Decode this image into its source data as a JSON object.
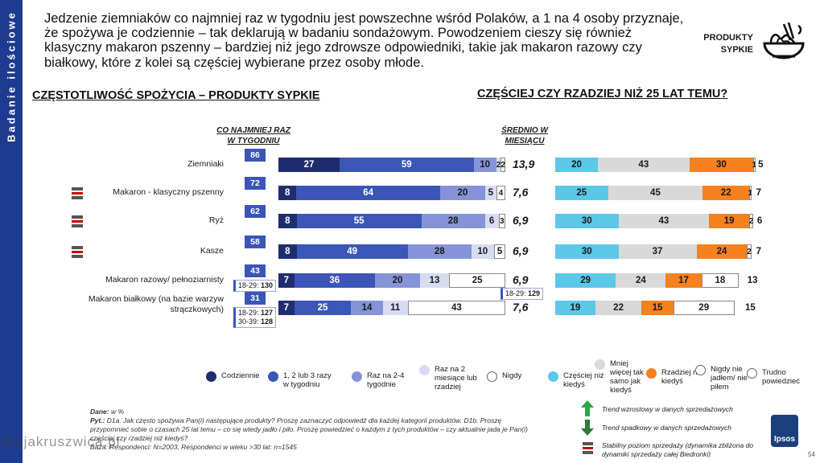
{
  "sidebar": {
    "label": "Badanie ilościowe"
  },
  "headline": "Jedzenie ziemniaków co najmniej raz w tygodniu jest powszechne wśród Polaków, a 1 na 4 osoby przyznaje, że spożywa je codziennie – tak deklarują w badaniu sondażowym. Powodzeniem cieszy się również klasyczny makaron pszenny – bardziej niż jego zdrowsze odpowiedniki, takie jak makaron razowy czy białkowy, które z kolei są częściej wybierane przez osoby młode.",
  "category": {
    "line1": "PRODUKTY",
    "line2": "SYPKIE",
    "icon": "pasta-bowl-icon"
  },
  "section_left": {
    "plain": "CZĘSTOTLIWOŚĆ ",
    "bold": "SPOŻYCIA – PRODUKTY SYPKIE"
  },
  "section_right": {
    "title": "CZĘŚCIEJ CZY RZADZIEJ NIŻ 25 LAT TEMU?"
  },
  "col_weekly": {
    "line1": "CO NAJMNIEJ RAZ",
    "line2": "W TYGODNIU"
  },
  "col_avg": {
    "line1": "ŚREDNIO W",
    "line2": "MIESIĄCU"
  },
  "colors": {
    "daily": "#1f2d6e",
    "weekly13": "#3b56b8",
    "weekly24": "#8594d8",
    "monthly2": "#d8dcf2",
    "never": "#ffffff",
    "more": "#5bc8e8",
    "same": "#d9d9d9",
    "less": "#f5811f",
    "never_r": "#ffffff",
    "dk": "#ffffff",
    "trend_up": "#27a844",
    "trend_down": "#2d7a3a",
    "trend_stable": "#555555"
  },
  "chart_data": [
    {
      "type": "bar",
      "title": "CZĘSTOTLIWOŚĆ SPOŻYCIA – PRODUKTY SYPKIE",
      "stacked": true,
      "categories": [
        "Ziemniaki",
        "Makaron - klasyczny pszenny",
        "Ryż",
        "Kasze",
        "Makaron razowy/ pełnoziarnisty",
        "Makaron białkowy (na bazie warzyw strączkowych)"
      ],
      "series": [
        {
          "name": "Codziennie",
          "values": [
            27,
            8,
            8,
            8,
            7,
            7
          ]
        },
        {
          "name": "1, 2 lub 3 razy w tygodniu",
          "values": [
            59,
            64,
            55,
            49,
            36,
            25
          ]
        },
        {
          "name": "Raz na 2-4 tygodnie",
          "values": [
            10,
            20,
            28,
            28,
            20,
            14
          ]
        },
        {
          "name": "Raz na 2 miesiące lub rzadziej",
          "values": [
            2,
            5,
            6,
            10,
            13,
            11
          ]
        },
        {
          "name": "Nigdy",
          "values": [
            2,
            4,
            3,
            5,
            25,
            43
          ]
        }
      ],
      "weekly_total": [
        "86",
        "72",
        "62",
        "58",
        "43",
        "31"
      ],
      "monthly_avg": [
        "13,9",
        "7,6",
        "6,9",
        "6,9",
        "6,9",
        "7,6"
      ],
      "age_notes": [
        [],
        [],
        [],
        [],
        [
          {
            "age": "18-29:",
            "val": "130"
          }
        ],
        [
          {
            "age": "18-29:",
            "val": "127"
          },
          {
            "age": "30-39:",
            "val": "128"
          }
        ]
      ],
      "avg_age_notes": [
        [],
        [],
        [],
        [],
        [
          {
            "age": "18-29:",
            "val": "129"
          }
        ],
        []
      ],
      "trends": [
        "",
        "stable",
        "stable",
        "stable",
        "",
        ""
      ]
    },
    {
      "type": "bar",
      "title": "CZĘŚCIEJ CZY RZADZIEJ NIŻ 25 LAT TEMU?",
      "stacked": true,
      "categories": [
        "Ziemniaki",
        "Makaron - klasyczny pszenny",
        "Ryż",
        "Kasze",
        "Makaron razowy/ pełnoziarnisty",
        "Makaron białkowy (na bazie warzyw strączkowych)"
      ],
      "series": [
        {
          "name": "Częściej niż kiedyś",
          "values": [
            20,
            25,
            30,
            30,
            29,
            19
          ]
        },
        {
          "name": "Mniej więcej tak samo jak kiedyś",
          "values": [
            43,
            45,
            43,
            37,
            24,
            22
          ]
        },
        {
          "name": "Rzadziej niż kiedyś",
          "values": [
            30,
            22,
            19,
            24,
            17,
            15
          ]
        },
        {
          "name": "Nigdy nie jadłem/ nie piłem",
          "values": [
            1,
            1,
            2,
            2,
            18,
            29
          ]
        },
        {
          "name": "Trudno powiedzieć",
          "values": [
            5,
            7,
            6,
            7,
            13,
            15
          ]
        }
      ]
    }
  ],
  "legend": [
    {
      "label": "Codziennie",
      "color": "#1f2d6e"
    },
    {
      "label": "1, 2 lub 3 razy w tygodniu",
      "color": "#3b56b8"
    },
    {
      "label": "Raz na 2-4 tygodnie",
      "color": "#8594d8"
    },
    {
      "label": "Raz na 2 miesiące lub rzadziej",
      "color": "#d8dcf2"
    },
    {
      "label": "Nigdy",
      "color": "#ffffff"
    },
    {
      "label": "Częściej niż kiedyś",
      "color": "#5bc8e8"
    },
    {
      "label": "Mniej więcej tak samo jak kiedyś",
      "color": "#d9d9d9"
    },
    {
      "label": "Rzadziej niż kiedyś",
      "color": "#f5811f"
    },
    {
      "label": "Nigdy nie jadłem/ nie piłem",
      "color": "#ffffff"
    },
    {
      "label": "Trudno powiedzieć",
      "color": "#ffffff"
    }
  ],
  "footer": {
    "base_label": "Dane:",
    "base": "w %",
    "q_label": "Pyt.:",
    "q": "D1a. Jak często spożywa Pan(i) następujące produkty? Proszę zaznaczyć odpowiedź dla każdej kategorii produktów. D1b. Proszę przypomnieć sobie o czasach 25 lat temu – co się wtedy jadło i piło. Proszę powiedzieć o każdym z tych produktów – czy aktualnie jada je Pan(i) częściej czy rzadziej niż kiedyś?",
    "n": "Baza: Respondenci: N=2003, Respondenci w wieku >30 lat: n=1545"
  },
  "notes": [
    {
      "icon": "arrow-up-icon",
      "text": "Trend wzrostowy w danych sprzedażowych"
    },
    {
      "icon": "arrow-down-icon",
      "text": "Trend spadkowy w danych sprzedażowych"
    },
    {
      "icon": "stable-icon",
      "text": "Stabilny poziom sprzedaży (dynamika zbliżona do dynamiki sprzedaży całej Biedronki)"
    }
  ],
  "page_number": "54",
  "logo_text": "Ipsos",
  "watermark": "mojakruszwica.pl"
}
